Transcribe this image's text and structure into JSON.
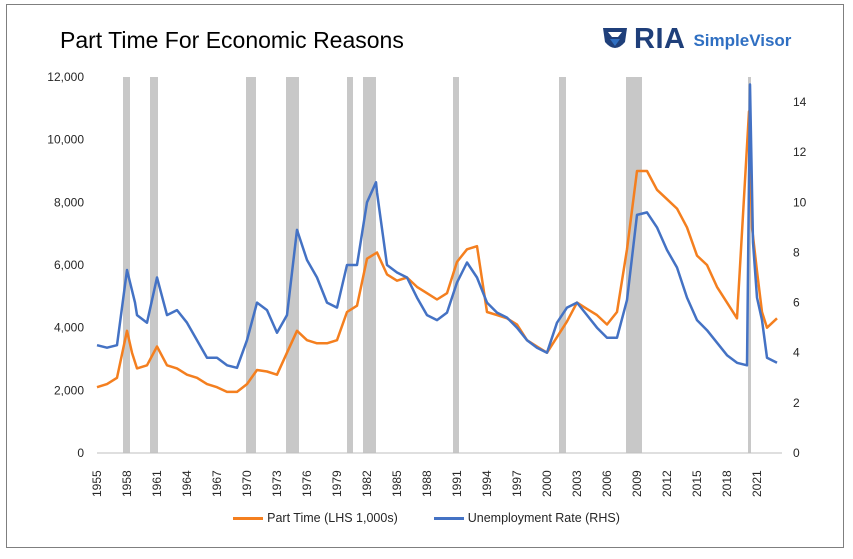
{
  "title": "Part Time For Economic Reasons",
  "logo": {
    "brand": "RIA",
    "product": "SimpleVisor",
    "icon": "eagle-shield-icon"
  },
  "colors": {
    "part_time": "#F47F1F",
    "unemployment": "#4472C4",
    "recession": "#C8C8C8"
  },
  "chart_data": {
    "type": "line",
    "title": "Part Time For Economic Reasons",
    "x_ticks": [
      "1955",
      "1958",
      "1961",
      "1964",
      "1967",
      "1970",
      "1973",
      "1976",
      "1979",
      "1982",
      "1985",
      "1988",
      "1991",
      "1994",
      "1997",
      "2000",
      "2003",
      "2006",
      "2009",
      "2012",
      "2015",
      "2018",
      "2021"
    ],
    "xlim": [
      1955,
      2023.5
    ],
    "y_left": {
      "ticks": [
        "0",
        "2,000",
        "4,000",
        "6,000",
        "8,000",
        "10,000",
        "12,000"
      ],
      "lim": [
        0,
        12000
      ]
    },
    "y_right": {
      "ticks": [
        "0",
        "2",
        "4",
        "6",
        "8",
        "10",
        "12",
        "14"
      ],
      "lim": [
        0,
        15
      ]
    },
    "grid": false,
    "legend_position": "bottom",
    "recessions": [
      [
        1957.6,
        1958.3
      ],
      [
        1960.3,
        1961.1
      ],
      [
        1969.9,
        1970.9
      ],
      [
        1973.9,
        1975.2
      ],
      [
        1980.0,
        1980.6
      ],
      [
        1981.6,
        1982.9
      ],
      [
        1990.6,
        1991.2
      ],
      [
        2001.2,
        2001.9
      ],
      [
        2007.9,
        2009.5
      ],
      [
        2020.1,
        2020.4
      ]
    ],
    "series": [
      {
        "name": "Part Time (LHS 1,000s)",
        "axis": "left",
        "points": [
          [
            1955,
            2100
          ],
          [
            1956,
            2200
          ],
          [
            1957,
            2400
          ],
          [
            1958,
            3900
          ],
          [
            1958.5,
            3200
          ],
          [
            1959,
            2700
          ],
          [
            1960,
            2800
          ],
          [
            1961,
            3400
          ],
          [
            1962,
            2800
          ],
          [
            1963,
            2700
          ],
          [
            1964,
            2500
          ],
          [
            1965,
            2400
          ],
          [
            1966,
            2200
          ],
          [
            1967,
            2100
          ],
          [
            1968,
            1950
          ],
          [
            1969,
            1950
          ],
          [
            1970,
            2200
          ],
          [
            1971,
            2650
          ],
          [
            1972,
            2600
          ],
          [
            1973,
            2500
          ],
          [
            1974,
            3200
          ],
          [
            1975,
            3900
          ],
          [
            1976,
            3600
          ],
          [
            1977,
            3500
          ],
          [
            1978,
            3500
          ],
          [
            1979,
            3600
          ],
          [
            1980,
            4500
          ],
          [
            1981,
            4700
          ],
          [
            1982,
            6200
          ],
          [
            1983,
            6400
          ],
          [
            1984,
            5700
          ],
          [
            1985,
            5500
          ],
          [
            1986,
            5600
          ],
          [
            1987,
            5300
          ],
          [
            1988,
            5100
          ],
          [
            1989,
            4900
          ],
          [
            1990,
            5100
          ],
          [
            1991,
            6100
          ],
          [
            1992,
            6500
          ],
          [
            1993,
            6600
          ],
          [
            1994,
            4500
          ],
          [
            1995,
            4400
          ],
          [
            1996,
            4300
          ],
          [
            1997,
            4100
          ],
          [
            1998,
            3600
          ],
          [
            1999,
            3400
          ],
          [
            2000,
            3200
          ],
          [
            2001,
            3700
          ],
          [
            2002,
            4200
          ],
          [
            2003,
            4800
          ],
          [
            2004,
            4600
          ],
          [
            2005,
            4400
          ],
          [
            2006,
            4100
          ],
          [
            2007,
            4500
          ],
          [
            2008,
            6500
          ],
          [
            2009,
            9000
          ],
          [
            2010,
            9000
          ],
          [
            2011,
            8400
          ],
          [
            2012,
            8100
          ],
          [
            2013,
            7800
          ],
          [
            2014,
            7200
          ],
          [
            2015,
            6300
          ],
          [
            2016,
            6000
          ],
          [
            2017,
            5300
          ],
          [
            2018,
            4800
          ],
          [
            2019,
            4300
          ],
          [
            2020.2,
            10900
          ],
          [
            2020.5,
            7200
          ],
          [
            2021,
            5800
          ],
          [
            2021.5,
            4500
          ],
          [
            2022,
            4000
          ],
          [
            2023,
            4300
          ]
        ]
      },
      {
        "name": "Unemployment Rate (RHS)",
        "axis": "right",
        "points": [
          [
            1955,
            4.3
          ],
          [
            1956,
            4.2
          ],
          [
            1957,
            4.3
          ],
          [
            1958,
            7.3
          ],
          [
            1958.8,
            6.0
          ],
          [
            1959,
            5.5
          ],
          [
            1960,
            5.2
          ],
          [
            1961,
            7.0
          ],
          [
            1962,
            5.5
          ],
          [
            1963,
            5.7
          ],
          [
            1964,
            5.2
          ],
          [
            1965,
            4.5
          ],
          [
            1966,
            3.8
          ],
          [
            1967,
            3.8
          ],
          [
            1968,
            3.5
          ],
          [
            1969,
            3.4
          ],
          [
            1970,
            4.5
          ],
          [
            1971,
            6.0
          ],
          [
            1972,
            5.7
          ],
          [
            1973,
            4.8
          ],
          [
            1974,
            5.5
          ],
          [
            1975,
            8.9
          ],
          [
            1976,
            7.7
          ],
          [
            1977,
            7.0
          ],
          [
            1978,
            6.0
          ],
          [
            1979,
            5.8
          ],
          [
            1980,
            7.5
          ],
          [
            1981,
            7.5
          ],
          [
            1982,
            10.0
          ],
          [
            1982.9,
            10.8
          ],
          [
            1983,
            10.4
          ],
          [
            1984,
            7.5
          ],
          [
            1985,
            7.2
          ],
          [
            1986,
            7.0
          ],
          [
            1987,
            6.2
          ],
          [
            1988,
            5.5
          ],
          [
            1989,
            5.3
          ],
          [
            1990,
            5.6
          ],
          [
            1991,
            6.8
          ],
          [
            1992,
            7.6
          ],
          [
            1993,
            7.0
          ],
          [
            1994,
            6.0
          ],
          [
            1995,
            5.6
          ],
          [
            1996,
            5.4
          ],
          [
            1997,
            5.0
          ],
          [
            1998,
            4.5
          ],
          [
            1999,
            4.2
          ],
          [
            2000,
            4.0
          ],
          [
            2001,
            5.2
          ],
          [
            2002,
            5.8
          ],
          [
            2003,
            6.0
          ],
          [
            2004,
            5.5
          ],
          [
            2005,
            5.0
          ],
          [
            2006,
            4.6
          ],
          [
            2007,
            4.6
          ],
          [
            2008,
            6.1
          ],
          [
            2009,
            9.5
          ],
          [
            2010,
            9.6
          ],
          [
            2011,
            9.0
          ],
          [
            2012,
            8.1
          ],
          [
            2013,
            7.4
          ],
          [
            2014,
            6.2
          ],
          [
            2015,
            5.3
          ],
          [
            2016,
            4.9
          ],
          [
            2017,
            4.4
          ],
          [
            2018,
            3.9
          ],
          [
            2019,
            3.6
          ],
          [
            2020.0,
            3.5
          ],
          [
            2020.3,
            14.7
          ],
          [
            2020.6,
            8.4
          ],
          [
            2021,
            6.2
          ],
          [
            2021.5,
            5.3
          ],
          [
            2022,
            3.8
          ],
          [
            2023,
            3.6
          ]
        ]
      }
    ]
  }
}
